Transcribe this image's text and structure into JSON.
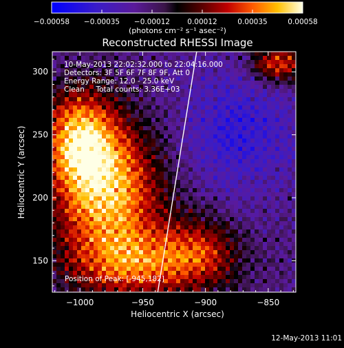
{
  "colorbar": {
    "ticks": [
      "-0.00058",
      "-0.00035",
      "-0.00012",
      "0.00012",
      "0.00035",
      "0.00058"
    ],
    "units_label": "(photons cm⁻² s⁻¹ asec⁻²)"
  },
  "title": "Reconstructed RHESSI Image",
  "info": {
    "line1": "10-May-2013 22:02:32.000 to 22:04:16.000",
    "line2": "Detectors: 3F 5F 6F 7F 8F 9F, Att 0",
    "line3": "Energy Range: 12.0 - 25.0 keV",
    "line4": "Clean     Total counts: 3.36E+03"
  },
  "peak_label": "Position of Peak: [-945,182]",
  "footer_date": "12-May-2013 11:01",
  "colors": {
    "background": "#000000",
    "text": "#ffffff",
    "limb_line": "#ffffff"
  },
  "chart_data": {
    "type": "heatmap",
    "title": "Reconstructed RHESSI Image",
    "xlabel": "Heliocentric X (arcsec)",
    "ylabel": "Heliocentric Y (arcsec)",
    "xlim": [
      -1022,
      -828
    ],
    "ylim": [
      125,
      316
    ],
    "x_ticks": [
      -1000,
      -950,
      -900,
      -850
    ],
    "y_ticks": [
      150,
      200,
      250,
      300
    ],
    "x_tick_labels": [
      "−1000",
      "−950",
      "−900",
      "−850"
    ],
    "y_tick_labels": [
      "150",
      "200",
      "250",
      "300"
    ],
    "colorbar_range": [
      -0.00058,
      0.00058
    ],
    "colormap": "blue-purple-red-yellow-white",
    "peak_position": [
      -945,
      182
    ],
    "limb_line": [
      [
        -938,
        125
      ],
      [
        -907,
        316
      ]
    ],
    "grid": false
  }
}
